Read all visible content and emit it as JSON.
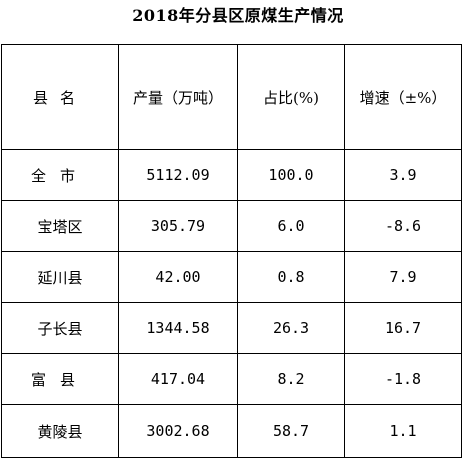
{
  "title": "2018年分县区原煤生产情况",
  "table": {
    "headers": [
      "县名",
      "产量（万吨）",
      "占比(%)",
      "增速（±%）"
    ],
    "rows": [
      {
        "name": "全市",
        "output": "5112.09",
        "share": "100.0",
        "growth": "3.9"
      },
      {
        "name": "宝塔区",
        "output": "305.79",
        "share": "6.0",
        "growth": "-8.6"
      },
      {
        "name": "延川县",
        "output": "42.00",
        "share": "0.8",
        "growth": "7.9"
      },
      {
        "name": "子长县",
        "output": "1344.58",
        "share": "26.3",
        "growth": "16.7"
      },
      {
        "name": "富县",
        "output": "417.04",
        "share": "8.2",
        "growth": "-1.8"
      },
      {
        "name": "黄陵县",
        "output": "3002.68",
        "share": "58.7",
        "growth": "1.1"
      }
    ]
  }
}
